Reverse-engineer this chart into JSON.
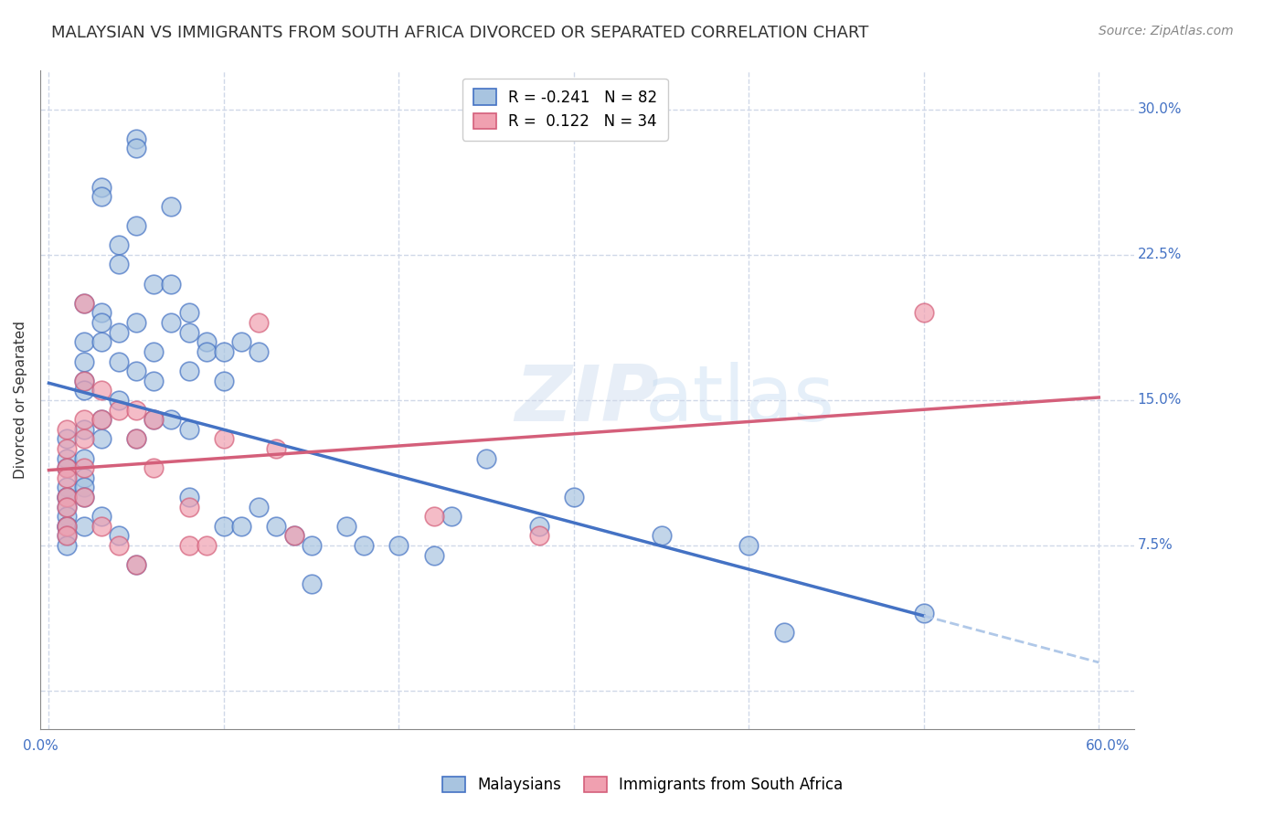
{
  "title": "MALAYSIAN VS IMMIGRANTS FROM SOUTH AFRICA DIVORCED OR SEPARATED CORRELATION CHART",
  "source": "Source: ZipAtlas.com",
  "xlabel": "",
  "ylabel": "Divorced or Separated",
  "legend_label1": "Malaysians",
  "legend_label2": "Immigrants from South Africa",
  "r1": -0.241,
  "n1": 82,
  "r2": 0.122,
  "n2": 34,
  "xlim": [
    0.0,
    0.6
  ],
  "ylim": [
    -0.02,
    0.32
  ],
  "yticks": [
    0.0,
    0.075,
    0.15,
    0.225,
    0.3
  ],
  "xticks": [
    0.0,
    0.1,
    0.2,
    0.3,
    0.4,
    0.5,
    0.6
  ],
  "ytick_labels": [
    "",
    "7.5%",
    "15.0%",
    "22.5%",
    "30.0%"
  ],
  "xtick_labels": [
    "0.0%",
    "",
    "",
    "",
    "",
    "",
    "60.0%"
  ],
  "color_blue": "#a8c4e0",
  "color_pink": "#f0a0b0",
  "line_blue": "#4472c4",
  "line_pink": "#d45f7a",
  "line_dashed_color": "#b0c8e8",
  "watermark": "ZIPatlas",
  "blue_x": [
    0.01,
    0.01,
    0.01,
    0.01,
    0.01,
    0.01,
    0.01,
    0.01,
    0.01,
    0.01,
    0.01,
    0.01,
    0.02,
    0.02,
    0.02,
    0.02,
    0.02,
    0.02,
    0.02,
    0.02,
    0.02,
    0.02,
    0.02,
    0.03,
    0.03,
    0.03,
    0.03,
    0.03,
    0.03,
    0.03,
    0.03,
    0.04,
    0.04,
    0.04,
    0.04,
    0.04,
    0.04,
    0.05,
    0.05,
    0.05,
    0.05,
    0.05,
    0.05,
    0.05,
    0.06,
    0.06,
    0.06,
    0.06,
    0.07,
    0.07,
    0.07,
    0.07,
    0.08,
    0.08,
    0.08,
    0.08,
    0.08,
    0.09,
    0.09,
    0.1,
    0.1,
    0.1,
    0.11,
    0.11,
    0.12,
    0.12,
    0.13,
    0.14,
    0.15,
    0.15,
    0.17,
    0.18,
    0.2,
    0.22,
    0.23,
    0.25,
    0.28,
    0.3,
    0.35,
    0.4,
    0.42,
    0.5
  ],
  "blue_y": [
    0.13,
    0.12,
    0.115,
    0.105,
    0.1,
    0.1,
    0.095,
    0.09,
    0.085,
    0.085,
    0.08,
    0.075,
    0.2,
    0.18,
    0.17,
    0.16,
    0.155,
    0.135,
    0.12,
    0.11,
    0.105,
    0.1,
    0.085,
    0.26,
    0.255,
    0.195,
    0.19,
    0.18,
    0.14,
    0.13,
    0.09,
    0.23,
    0.22,
    0.185,
    0.17,
    0.15,
    0.08,
    0.285,
    0.28,
    0.24,
    0.19,
    0.165,
    0.13,
    0.065,
    0.21,
    0.175,
    0.16,
    0.14,
    0.25,
    0.21,
    0.19,
    0.14,
    0.195,
    0.185,
    0.165,
    0.135,
    0.1,
    0.18,
    0.175,
    0.175,
    0.16,
    0.085,
    0.18,
    0.085,
    0.175,
    0.095,
    0.085,
    0.08,
    0.075,
    0.055,
    0.085,
    0.075,
    0.075,
    0.07,
    0.09,
    0.12,
    0.085,
    0.1,
    0.08,
    0.075,
    0.03,
    0.04
  ],
  "pink_x": [
    0.01,
    0.01,
    0.01,
    0.01,
    0.01,
    0.01,
    0.01,
    0.01,
    0.02,
    0.02,
    0.02,
    0.02,
    0.02,
    0.02,
    0.03,
    0.03,
    0.03,
    0.04,
    0.04,
    0.05,
    0.05,
    0.05,
    0.06,
    0.06,
    0.08,
    0.08,
    0.09,
    0.1,
    0.12,
    0.13,
    0.14,
    0.22,
    0.28,
    0.5
  ],
  "pink_y": [
    0.135,
    0.125,
    0.115,
    0.11,
    0.1,
    0.095,
    0.085,
    0.08,
    0.2,
    0.16,
    0.14,
    0.13,
    0.115,
    0.1,
    0.155,
    0.14,
    0.085,
    0.145,
    0.075,
    0.145,
    0.13,
    0.065,
    0.14,
    0.115,
    0.095,
    0.075,
    0.075,
    0.13,
    0.19,
    0.125,
    0.08,
    0.09,
    0.08,
    0.195
  ],
  "bg_color": "#ffffff",
  "grid_color": "#d0d8e8",
  "title_fontsize": 13,
  "axis_label_fontsize": 11,
  "tick_fontsize": 11,
  "source_fontsize": 10
}
